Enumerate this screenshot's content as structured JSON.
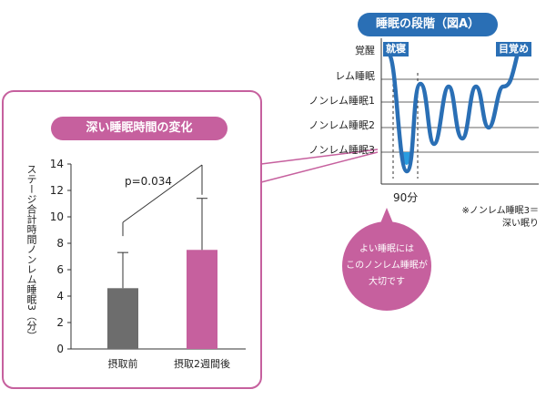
{
  "sleep_diagram": {
    "title": "睡眠の段階（図A）",
    "stages": [
      "覚醒",
      "レム睡眠",
      "ノンレム睡眠1",
      "ノンレム睡眠2",
      "ノンレム睡眠3"
    ],
    "start_tag": "就寝",
    "end_tag": "目覚め",
    "cycle_label": "90分",
    "note_line1": "※ノンレム睡眠3＝",
    "note_line2": "深い眠り"
  },
  "callout": {
    "line1": "よい睡眠には",
    "line2": "このノンレム睡眠が",
    "line3": "大切です"
  },
  "chart_data": {
    "type": "bar",
    "title": "深い睡眠時間の変化",
    "ylabel": "ステージ合計時間ノンレム睡眠3（分）",
    "categories": [
      "摂取前",
      "摂取2週間後"
    ],
    "values": [
      4.6,
      7.5
    ],
    "error_upper": [
      7.3,
      11.4
    ],
    "colors": [
      "#6d6d6d",
      "#c6609e"
    ],
    "ylim": [
      0,
      14
    ],
    "yticks": [
      "0",
      "2",
      "4",
      "6",
      "8",
      "10",
      "12",
      "14"
    ],
    "annotation": "p=0.034"
  },
  "colors": {
    "pink": "#c6609e",
    "blue": "#2a6fb5",
    "gray": "#6d6d6d"
  }
}
